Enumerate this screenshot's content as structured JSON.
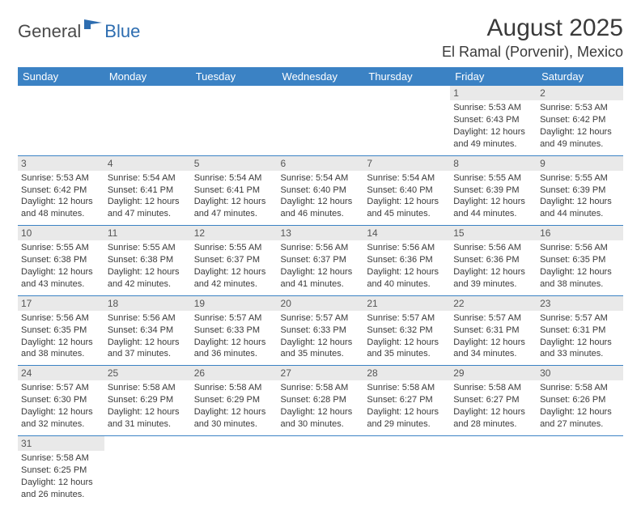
{
  "logo": {
    "general": "General",
    "blue": "Blue"
  },
  "header": {
    "title": "August 2025",
    "location": "El Ramal (Porvenir), Mexico"
  },
  "dayHeaders": [
    "Sunday",
    "Monday",
    "Tuesday",
    "Wednesday",
    "Thursday",
    "Friday",
    "Saturday"
  ],
  "colors": {
    "headerBg": "#3b82c4",
    "headerText": "#ffffff",
    "dayNumBg": "#e9e9e9",
    "text": "#3a3a3a",
    "rowBorder": "#3b82c4",
    "logoBlue": "#2d6db0"
  },
  "weeks": [
    [
      null,
      null,
      null,
      null,
      null,
      {
        "n": "1",
        "sr": "Sunrise: 5:53 AM",
        "ss": "Sunset: 6:43 PM",
        "d1": "Daylight: 12 hours",
        "d2": "and 49 minutes."
      },
      {
        "n": "2",
        "sr": "Sunrise: 5:53 AM",
        "ss": "Sunset: 6:42 PM",
        "d1": "Daylight: 12 hours",
        "d2": "and 49 minutes."
      }
    ],
    [
      {
        "n": "3",
        "sr": "Sunrise: 5:53 AM",
        "ss": "Sunset: 6:42 PM",
        "d1": "Daylight: 12 hours",
        "d2": "and 48 minutes."
      },
      {
        "n": "4",
        "sr": "Sunrise: 5:54 AM",
        "ss": "Sunset: 6:41 PM",
        "d1": "Daylight: 12 hours",
        "d2": "and 47 minutes."
      },
      {
        "n": "5",
        "sr": "Sunrise: 5:54 AM",
        "ss": "Sunset: 6:41 PM",
        "d1": "Daylight: 12 hours",
        "d2": "and 47 minutes."
      },
      {
        "n": "6",
        "sr": "Sunrise: 5:54 AM",
        "ss": "Sunset: 6:40 PM",
        "d1": "Daylight: 12 hours",
        "d2": "and 46 minutes."
      },
      {
        "n": "7",
        "sr": "Sunrise: 5:54 AM",
        "ss": "Sunset: 6:40 PM",
        "d1": "Daylight: 12 hours",
        "d2": "and 45 minutes."
      },
      {
        "n": "8",
        "sr": "Sunrise: 5:55 AM",
        "ss": "Sunset: 6:39 PM",
        "d1": "Daylight: 12 hours",
        "d2": "and 44 minutes."
      },
      {
        "n": "9",
        "sr": "Sunrise: 5:55 AM",
        "ss": "Sunset: 6:39 PM",
        "d1": "Daylight: 12 hours",
        "d2": "and 44 minutes."
      }
    ],
    [
      {
        "n": "10",
        "sr": "Sunrise: 5:55 AM",
        "ss": "Sunset: 6:38 PM",
        "d1": "Daylight: 12 hours",
        "d2": "and 43 minutes."
      },
      {
        "n": "11",
        "sr": "Sunrise: 5:55 AM",
        "ss": "Sunset: 6:38 PM",
        "d1": "Daylight: 12 hours",
        "d2": "and 42 minutes."
      },
      {
        "n": "12",
        "sr": "Sunrise: 5:55 AM",
        "ss": "Sunset: 6:37 PM",
        "d1": "Daylight: 12 hours",
        "d2": "and 42 minutes."
      },
      {
        "n": "13",
        "sr": "Sunrise: 5:56 AM",
        "ss": "Sunset: 6:37 PM",
        "d1": "Daylight: 12 hours",
        "d2": "and 41 minutes."
      },
      {
        "n": "14",
        "sr": "Sunrise: 5:56 AM",
        "ss": "Sunset: 6:36 PM",
        "d1": "Daylight: 12 hours",
        "d2": "and 40 minutes."
      },
      {
        "n": "15",
        "sr": "Sunrise: 5:56 AM",
        "ss": "Sunset: 6:36 PM",
        "d1": "Daylight: 12 hours",
        "d2": "and 39 minutes."
      },
      {
        "n": "16",
        "sr": "Sunrise: 5:56 AM",
        "ss": "Sunset: 6:35 PM",
        "d1": "Daylight: 12 hours",
        "d2": "and 38 minutes."
      }
    ],
    [
      {
        "n": "17",
        "sr": "Sunrise: 5:56 AM",
        "ss": "Sunset: 6:35 PM",
        "d1": "Daylight: 12 hours",
        "d2": "and 38 minutes."
      },
      {
        "n": "18",
        "sr": "Sunrise: 5:56 AM",
        "ss": "Sunset: 6:34 PM",
        "d1": "Daylight: 12 hours",
        "d2": "and 37 minutes."
      },
      {
        "n": "19",
        "sr": "Sunrise: 5:57 AM",
        "ss": "Sunset: 6:33 PM",
        "d1": "Daylight: 12 hours",
        "d2": "and 36 minutes."
      },
      {
        "n": "20",
        "sr": "Sunrise: 5:57 AM",
        "ss": "Sunset: 6:33 PM",
        "d1": "Daylight: 12 hours",
        "d2": "and 35 minutes."
      },
      {
        "n": "21",
        "sr": "Sunrise: 5:57 AM",
        "ss": "Sunset: 6:32 PM",
        "d1": "Daylight: 12 hours",
        "d2": "and 35 minutes."
      },
      {
        "n": "22",
        "sr": "Sunrise: 5:57 AM",
        "ss": "Sunset: 6:31 PM",
        "d1": "Daylight: 12 hours",
        "d2": "and 34 minutes."
      },
      {
        "n": "23",
        "sr": "Sunrise: 5:57 AM",
        "ss": "Sunset: 6:31 PM",
        "d1": "Daylight: 12 hours",
        "d2": "and 33 minutes."
      }
    ],
    [
      {
        "n": "24",
        "sr": "Sunrise: 5:57 AM",
        "ss": "Sunset: 6:30 PM",
        "d1": "Daylight: 12 hours",
        "d2": "and 32 minutes."
      },
      {
        "n": "25",
        "sr": "Sunrise: 5:58 AM",
        "ss": "Sunset: 6:29 PM",
        "d1": "Daylight: 12 hours",
        "d2": "and 31 minutes."
      },
      {
        "n": "26",
        "sr": "Sunrise: 5:58 AM",
        "ss": "Sunset: 6:29 PM",
        "d1": "Daylight: 12 hours",
        "d2": "and 30 minutes."
      },
      {
        "n": "27",
        "sr": "Sunrise: 5:58 AM",
        "ss": "Sunset: 6:28 PM",
        "d1": "Daylight: 12 hours",
        "d2": "and 30 minutes."
      },
      {
        "n": "28",
        "sr": "Sunrise: 5:58 AM",
        "ss": "Sunset: 6:27 PM",
        "d1": "Daylight: 12 hours",
        "d2": "and 29 minutes."
      },
      {
        "n": "29",
        "sr": "Sunrise: 5:58 AM",
        "ss": "Sunset: 6:27 PM",
        "d1": "Daylight: 12 hours",
        "d2": "and 28 minutes."
      },
      {
        "n": "30",
        "sr": "Sunrise: 5:58 AM",
        "ss": "Sunset: 6:26 PM",
        "d1": "Daylight: 12 hours",
        "d2": "and 27 minutes."
      }
    ],
    [
      {
        "n": "31",
        "sr": "Sunrise: 5:58 AM",
        "ss": "Sunset: 6:25 PM",
        "d1": "Daylight: 12 hours",
        "d2": "and 26 minutes."
      },
      null,
      null,
      null,
      null,
      null,
      null
    ]
  ]
}
